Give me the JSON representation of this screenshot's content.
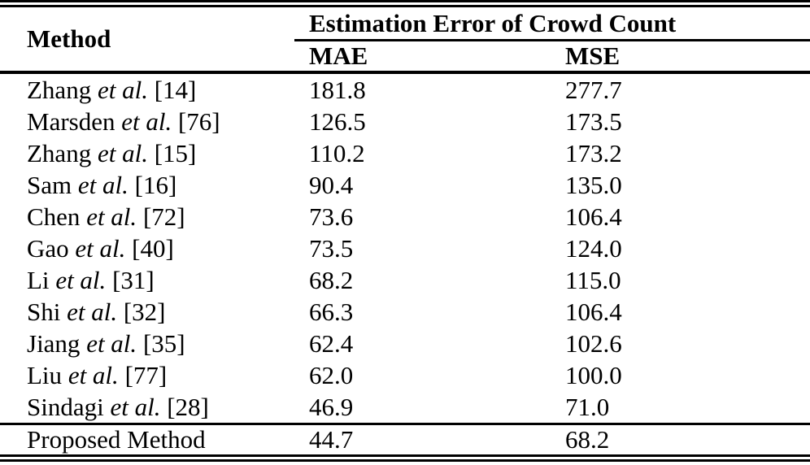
{
  "table": {
    "header": {
      "method_label": "Method",
      "group_label": "Estimation Error of Crowd Count",
      "mae_label": "MAE",
      "mse_label": "MSE"
    },
    "rows": [
      {
        "name": "Zhang",
        "etal": "et al.",
        "ref": "[14]",
        "mae": "181.8",
        "mse": "277.7"
      },
      {
        "name": "Marsden",
        "etal": "et al.",
        "ref": "[76]",
        "mae": "126.5",
        "mse": "173.5"
      },
      {
        "name": "Zhang",
        "etal": "et al.",
        "ref": "[15]",
        "mae": "110.2",
        "mse": "173.2"
      },
      {
        "name": "Sam",
        "etal": "et al.",
        "ref": "[16]",
        "mae": "90.4",
        "mse": "135.0"
      },
      {
        "name": "Chen",
        "etal": "et al.",
        "ref": "[72]",
        "mae": "73.6",
        "mse": "106.4"
      },
      {
        "name": "Gao",
        "etal": "et al.",
        "ref": "[40]",
        "mae": "73.5",
        "mse": "124.0"
      },
      {
        "name": "Li",
        "etal": "et al.",
        "ref": "[31]",
        "mae": "68.2",
        "mse": "115.0"
      },
      {
        "name": "Shi",
        "etal": "et al.",
        "ref": "[32]",
        "mae": "66.3",
        "mse": "106.4"
      },
      {
        "name": "Jiang",
        "etal": "et al.",
        "ref": "[35]",
        "mae": "62.4",
        "mse": "102.6"
      },
      {
        "name": "Liu",
        "etal": "et al.",
        "ref": "[77]",
        "mae": "62.0",
        "mse": "100.0"
      },
      {
        "name": "Sindagi",
        "etal": "et al.",
        "ref": "[28]",
        "mae": "46.9",
        "mse": "71.0"
      }
    ],
    "proposed": {
      "name": "Proposed Method",
      "mae": "44.7",
      "mse": "68.2"
    }
  },
  "colors": {
    "text": "#000000",
    "background": "#ffffff",
    "rule": "#000000"
  }
}
